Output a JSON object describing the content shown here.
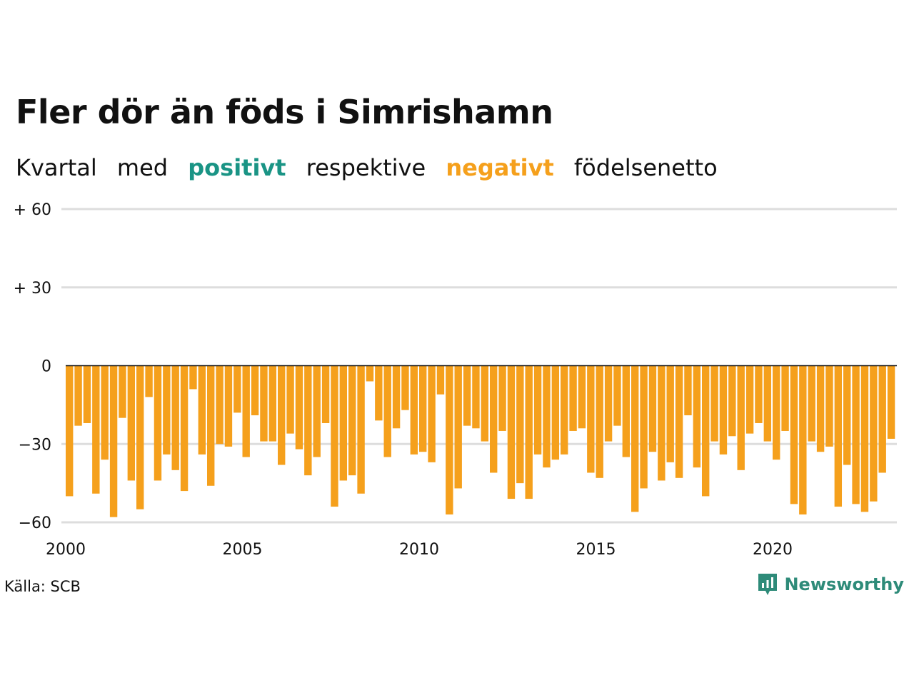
{
  "title": "Fler dör än föds i Simrishamn",
  "subtitle": {
    "part1": "Kvartal",
    "part2": "med",
    "positive_word": "positivt",
    "part3": "respektive",
    "negative_word": "negativt",
    "part4": "födelsenetto"
  },
  "colors": {
    "positive": "#1a9485",
    "negative": "#f5a01c",
    "grid": "#dddddd",
    "zero_line": "#111111",
    "brand": "#2e8b79"
  },
  "source": "Källa: SCB",
  "brand": {
    "name": "Newsworthy",
    "icon": "newsworthy-logo-icon"
  },
  "chart_data": {
    "type": "bar",
    "title": "Fler dör än föds i Simrishamn",
    "frequency": "quarterly",
    "start": "2000 Q1",
    "end": "2023 Q2",
    "ylim": [
      -60,
      60
    ],
    "yticks": [
      {
        "value": 60,
        "label": "+ 60"
      },
      {
        "value": 30,
        "label": "+ 30"
      },
      {
        "value": 0,
        "label": "0"
      },
      {
        "value": -30,
        "label": "−30"
      },
      {
        "value": -60,
        "label": "−60"
      }
    ],
    "xticks": [
      "2000",
      "2005",
      "2010",
      "2015",
      "2020"
    ],
    "grid": true,
    "values": [
      -50,
      -23,
      -22,
      -49,
      -36,
      -58,
      -20,
      -44,
      -55,
      -12,
      -44,
      -34,
      -40,
      -48,
      -9,
      -34,
      -46,
      -30,
      -31,
      -18,
      -35,
      -19,
      -29,
      -29,
      -38,
      -26,
      -32,
      -42,
      -35,
      -22,
      -54,
      -44,
      -42,
      -49,
      -6,
      -21,
      -35,
      -24,
      -17,
      -34,
      -33,
      -37,
      -11,
      -57,
      -47,
      -23,
      -24,
      -29,
      -41,
      -25,
      -51,
      -45,
      -51,
      -34,
      -39,
      -36,
      -34,
      -25,
      -24,
      -41,
      -43,
      -29,
      -23,
      -35,
      -56,
      -47,
      -33,
      -44,
      -37,
      -43,
      -19,
      -39,
      -50,
      -29,
      -34,
      -27,
      -40,
      -26,
      -22,
      -29,
      -36,
      -25,
      -53,
      -57,
      -29,
      -33,
      -31,
      -54,
      -38,
      -53,
      -56,
      -52,
      -41,
      -28
    ]
  }
}
